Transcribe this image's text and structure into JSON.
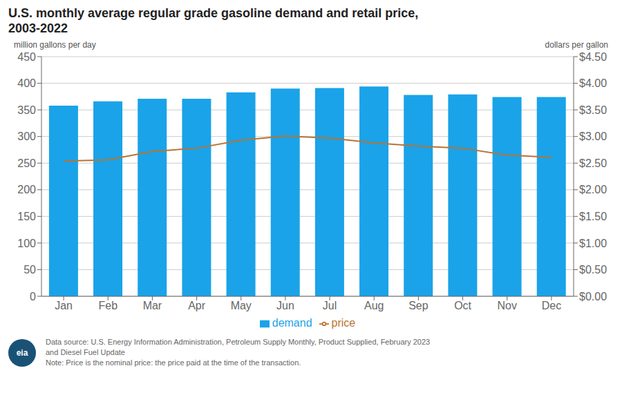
{
  "chart_data": {
    "type": "bar",
    "title": "U.S. monthly average regular grade gasoline demand and retail price,",
    "subtitle": "2003-2022",
    "y_label": "million gallons per day",
    "y2_label": "dollars per gallon",
    "categories": [
      "Jan",
      "Feb",
      "Mar",
      "Apr",
      "May",
      "Jun",
      "Jul",
      "Aug",
      "Sep",
      "Oct",
      "Nov",
      "Dec"
    ],
    "series": [
      {
        "name": "demand",
        "type": "bar",
        "color": "#1aa3e8",
        "values": [
          358,
          366,
          371,
          371,
          383,
          390,
          391,
          394,
          378,
          379,
          374,
          374
        ]
      },
      {
        "name": "price",
        "type": "line",
        "color": "#b87333",
        "axis": "y2",
        "values": [
          2.54,
          2.56,
          2.72,
          2.78,
          2.93,
          3.01,
          2.97,
          2.88,
          2.82,
          2.78,
          2.65,
          2.61
        ]
      }
    ],
    "ylim": [
      0,
      450
    ],
    "yticks": [
      0,
      50,
      100,
      150,
      200,
      250,
      300,
      350,
      400,
      450
    ],
    "y2lim": [
      0,
      4.5
    ],
    "y2ticks": [
      {
        "value": 0.0,
        "label": "$0.00"
      },
      {
        "value": 0.5,
        "label": "$0.50"
      },
      {
        "value": 1.0,
        "label": "$1.00"
      },
      {
        "value": 1.5,
        "label": "$1.50"
      },
      {
        "value": 2.0,
        "label": "$2.00"
      },
      {
        "value": 2.5,
        "label": "$2.50"
      },
      {
        "value": 3.0,
        "label": "$3.00"
      },
      {
        "value": 3.5,
        "label": "$3.50"
      },
      {
        "value": 4.0,
        "label": "$4.00"
      },
      {
        "value": 4.5,
        "label": "$4.50"
      }
    ],
    "grid": true,
    "legend": "bottom",
    "annotations": [
      "eia",
      "Data source: U.S. Energy Information Administration, Petroleum Supply Monthly, Product Supplied, February 2023",
      "and Diesel Fuel Update",
      "Note: Price is the nominal price: the price paid at the time of the transaction."
    ]
  }
}
